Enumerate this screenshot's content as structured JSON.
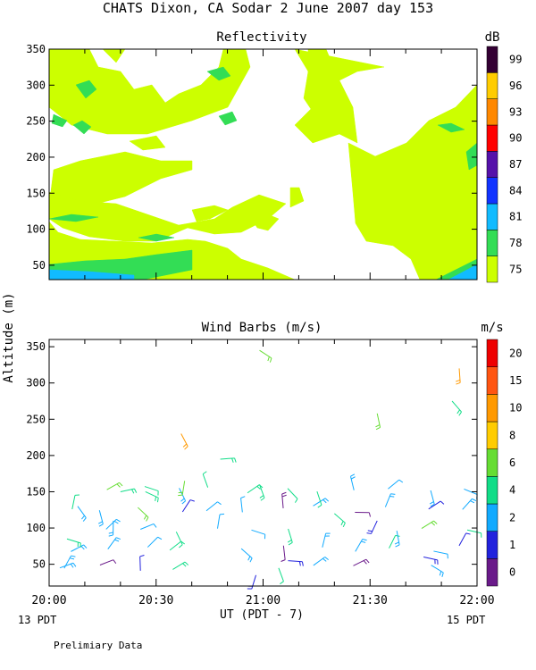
{
  "title": "CHATS Dixon, CA  Sodar   2 June 2007   day 153",
  "shared_y_label": "Altitude (m)",
  "x_axis": {
    "ticks": [
      "20:00",
      "20:30",
      "21:00",
      "21:30",
      "22:00"
    ],
    "label": "UT  (PDT - 7)",
    "left_note": "13 PDT",
    "right_note": "15 PDT"
  },
  "footer_note": "Prelimiary Data",
  "colors": {
    "refl_75": "#ccff00",
    "refl_78": "#33dd55",
    "refl_81": "#11bbff",
    "wind_0": "#6a1a8a",
    "wind_1": "#2222dd",
    "wind_2": "#11aaff",
    "wind_4": "#11dd88",
    "wind_6": "#66dd33",
    "wind_10": "#dd9933"
  },
  "chart_data": [
    {
      "type": "heatmap",
      "title": "Reflectivity",
      "ylabel": "Altitude (m)",
      "xlabel": "UT  (PDT - 7)",
      "xlim": [
        "20:00",
        "22:00"
      ],
      "ylim": [
        30,
        350
      ],
      "yticks": [
        50,
        100,
        150,
        200,
        250,
        300,
        350
      ],
      "colorbar": {
        "unit": "dB",
        "levels": [
          75,
          78,
          81,
          84,
          87,
          90,
          93,
          96,
          99
        ],
        "colors": [
          "#ccff00",
          "#33dd55",
          "#11bbff",
          "#1133ff",
          "#5511aa",
          "#ff0000",
          "#ff8800",
          "#ffcc00",
          "#330033"
        ]
      },
      "contour_regions_dB": [
        {
          "min_dB": 75,
          "altitude_band_m": [
            30,
            350
          ],
          "time_band": [
            "20:00",
            "22:00"
          ],
          "note": "patchy coverage, densest below 140 m"
        },
        {
          "min_dB": 78,
          "altitude_band_m": [
            40,
            75
          ],
          "time_band": [
            "20:00",
            "20:40"
          ]
        },
        {
          "min_dB": 78,
          "altitude_band_m": [
            40,
            65
          ],
          "time_band": [
            "21:47",
            "22:00"
          ]
        },
        {
          "min_dB": 81,
          "altitude_band_m": [
            40,
            50
          ],
          "time_band": [
            "20:00",
            "20:23"
          ]
        },
        {
          "min_dB": 81,
          "altitude_band_m": [
            40,
            55
          ],
          "time_band": [
            "21:53",
            "22:00"
          ]
        }
      ]
    },
    {
      "type": "scatter",
      "title": "Wind Barbs (m/s)",
      "ylabel": "Altitude (m)",
      "xlabel": "UT  (PDT - 7)",
      "xlim": [
        "20:00",
        "22:00"
      ],
      "ylim": [
        20,
        360
      ],
      "yticks": [
        50,
        100,
        150,
        200,
        250,
        300,
        350
      ],
      "colorbar": {
        "unit": "m/s",
        "levels": [
          0,
          1,
          2,
          4,
          6,
          8,
          10,
          15,
          20
        ],
        "colors": [
          "#6a1a8a",
          "#2222dd",
          "#11aaff",
          "#11dd88",
          "#66dd33",
          "#ffcc00",
          "#ff9900",
          "#ff5511",
          "#ee0000"
        ]
      },
      "barbs_sample": [
        {
          "time": "20:03",
          "alt_m": 45,
          "speed_ms": 3
        },
        {
          "time": "20:05",
          "alt_m": 85,
          "speed_ms": 4
        },
        {
          "time": "20:08",
          "alt_m": 130,
          "speed_ms": 2
        },
        {
          "time": "20:18",
          "alt_m": 110,
          "speed_ms": 2
        },
        {
          "time": "20:20",
          "alt_m": 150,
          "speed_ms": 4
        },
        {
          "time": "20:27",
          "alt_m": 150,
          "speed_ms": 4
        },
        {
          "time": "20:37",
          "alt_m": 230,
          "speed_ms": 12
        },
        {
          "time": "20:38",
          "alt_m": 165,
          "speed_ms": 6
        },
        {
          "time": "20:48",
          "alt_m": 195,
          "speed_ms": 5
        },
        {
          "time": "20:59",
          "alt_m": 345,
          "speed_ms": 6
        },
        {
          "time": "20:59",
          "alt_m": 160,
          "speed_ms": 5
        },
        {
          "time": "20:58",
          "alt_m": 35,
          "speed_ms": 1
        },
        {
          "time": "21:07",
          "alt_m": 55,
          "speed_ms": 1
        },
        {
          "time": "21:20",
          "alt_m": 120,
          "speed_ms": 4
        },
        {
          "time": "21:32",
          "alt_m": 258,
          "speed_ms": 6
        },
        {
          "time": "21:32",
          "alt_m": 110,
          "speed_ms": 1
        },
        {
          "time": "21:45",
          "alt_m": 60,
          "speed_ms": 1
        },
        {
          "time": "21:53",
          "alt_m": 275,
          "speed_ms": 4
        },
        {
          "time": "21:55",
          "alt_m": 320,
          "speed_ms": 10
        }
      ]
    }
  ]
}
